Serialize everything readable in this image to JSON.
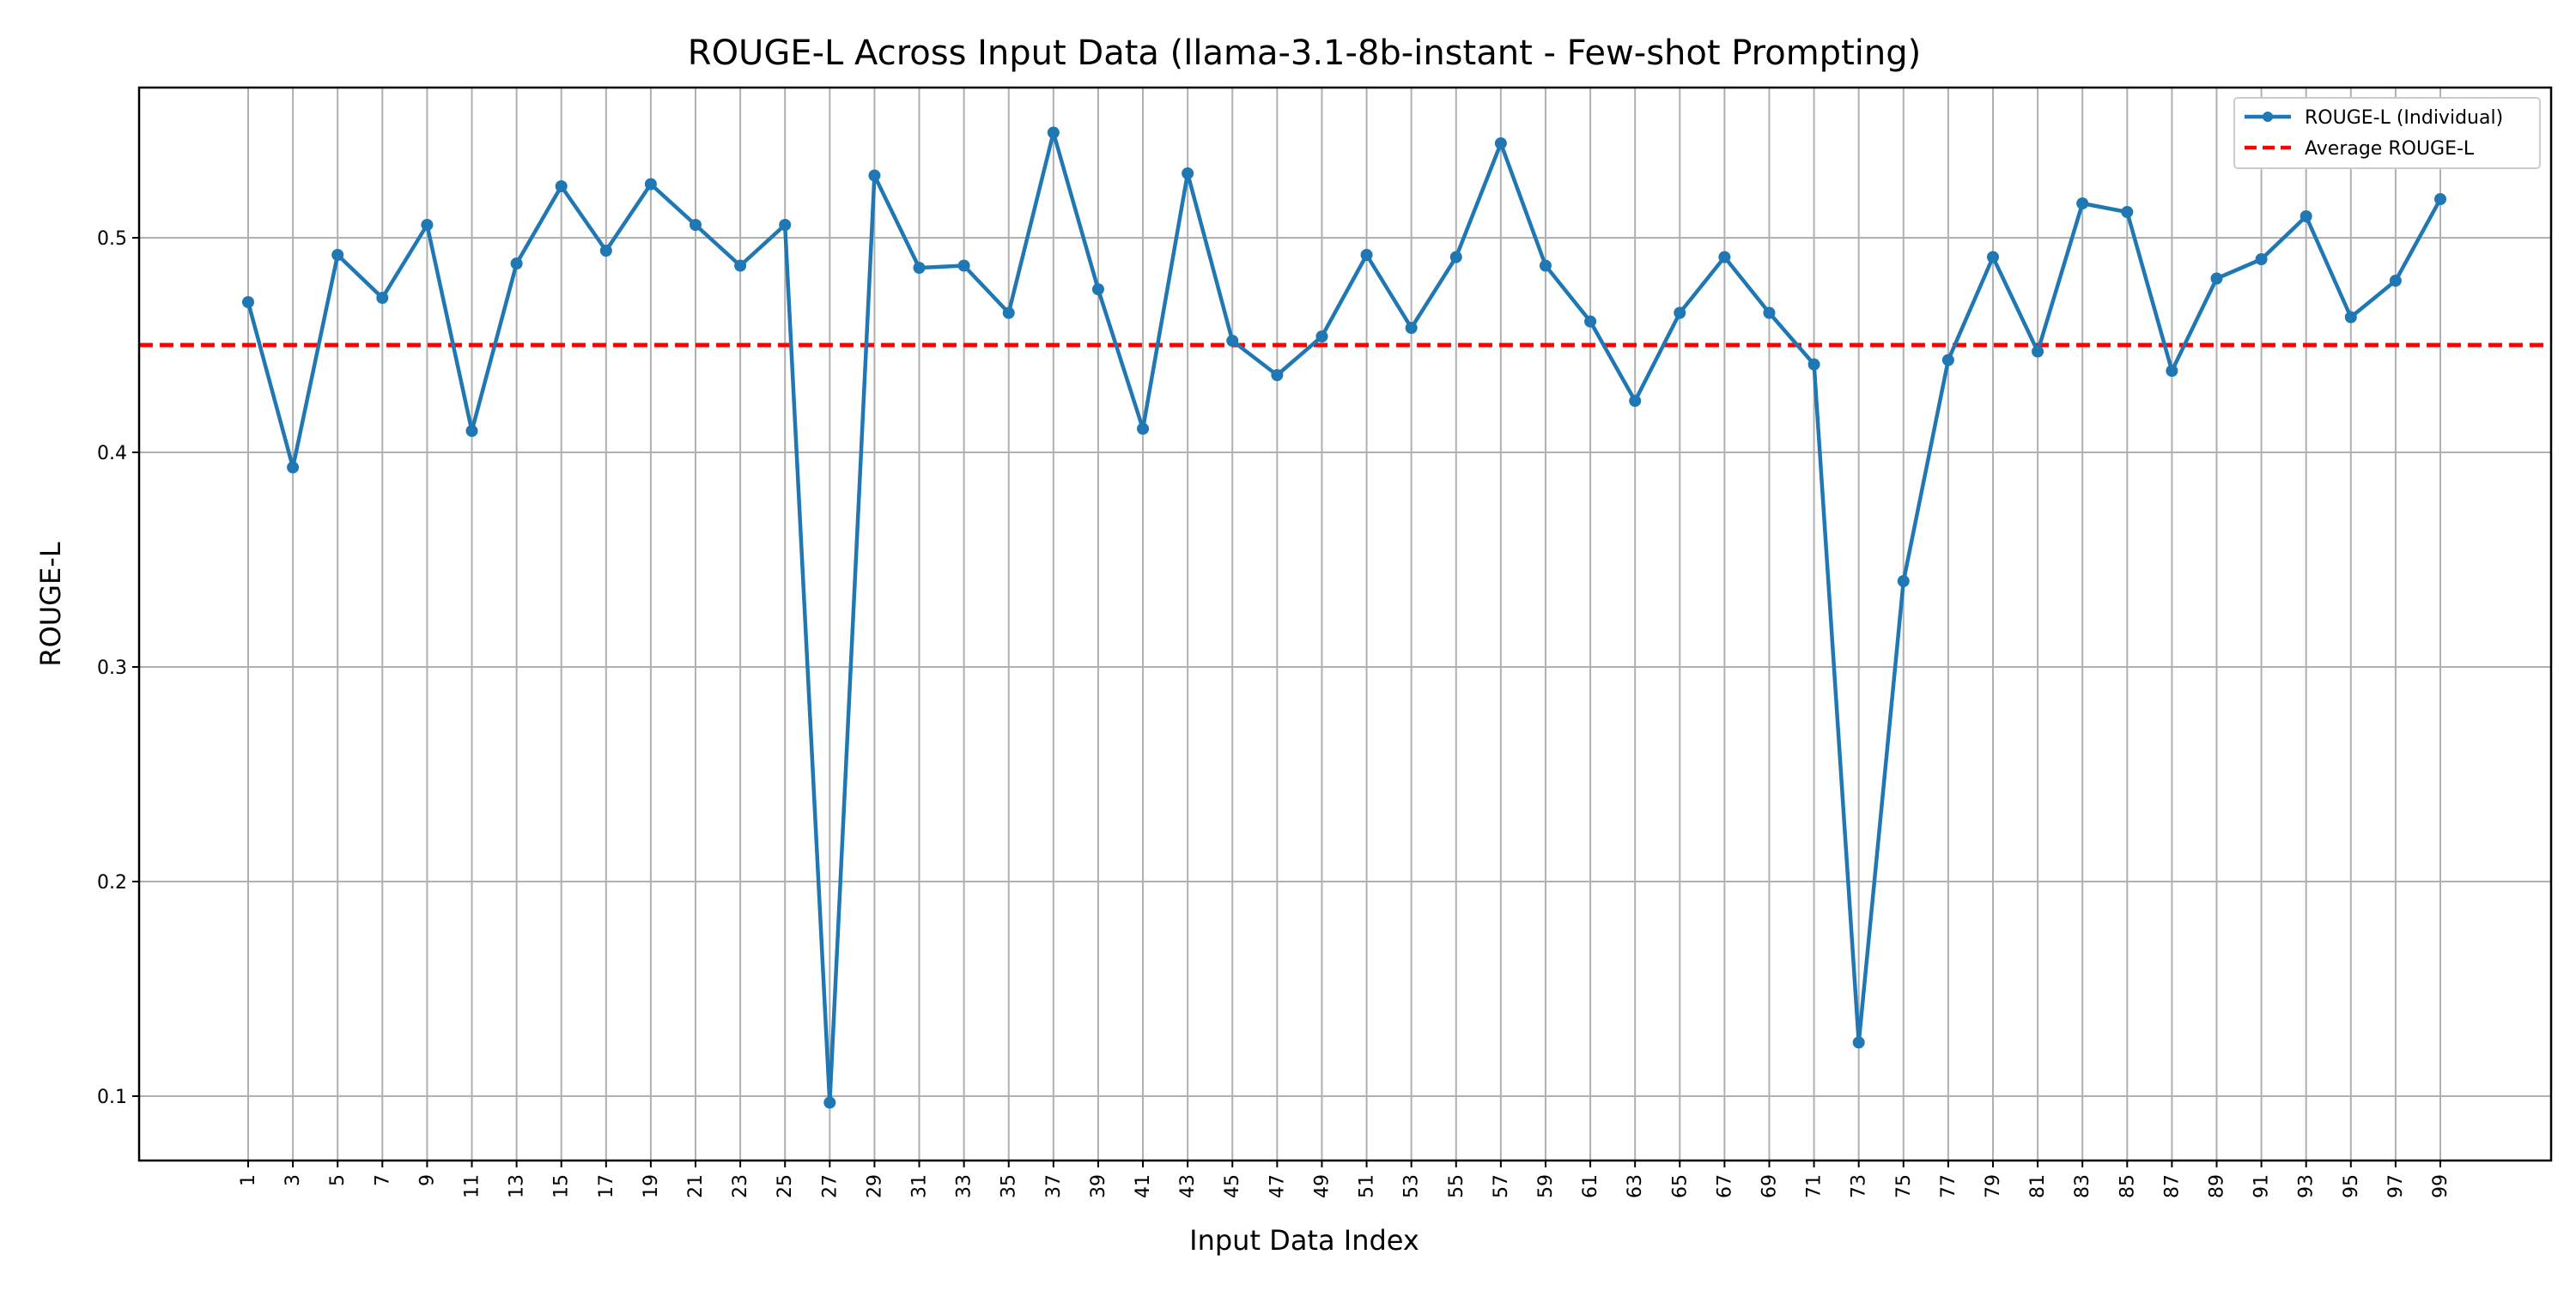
{
  "chart_data": {
    "type": "line",
    "title": "ROUGE-L Across Input Data (llama-3.1-8b-instant - Few-shot Prompting)",
    "xlabel": "Input Data Index",
    "ylabel": "ROUGE-L",
    "ylim": [
      0.07,
      0.57
    ],
    "yticks": [
      0.1,
      0.2,
      0.3,
      0.4,
      0.5
    ],
    "x": [
      1,
      3,
      5,
      7,
      9,
      11,
      13,
      15,
      17,
      19,
      21,
      23,
      25,
      27,
      29,
      31,
      33,
      35,
      37,
      39,
      41,
      43,
      45,
      47,
      49,
      51,
      53,
      55,
      57,
      59,
      61,
      63,
      65,
      67,
      69,
      71,
      73,
      75,
      77,
      79,
      81,
      83,
      85,
      87,
      89,
      91,
      93,
      95,
      97,
      99
    ],
    "series": [
      {
        "name": "ROUGE-L (Individual)",
        "color": "#1f77b4",
        "values": [
          0.47,
          0.393,
          0.492,
          0.472,
          0.506,
          0.41,
          0.488,
          0.524,
          0.494,
          0.525,
          0.506,
          0.487,
          0.506,
          0.097,
          0.529,
          0.486,
          0.487,
          0.465,
          0.549,
          0.476,
          0.411,
          0.53,
          0.452,
          0.436,
          0.454,
          0.492,
          0.458,
          0.491,
          0.544,
          0.487,
          0.461,
          0.424,
          0.465,
          0.491,
          0.465,
          0.441,
          0.125,
          0.34,
          0.443,
          0.491,
          0.447,
          0.516,
          0.512,
          0.438,
          0.481,
          0.49,
          0.51,
          0.463,
          0.48,
          0.518
        ]
      },
      {
        "name": "Average ROUGE-L",
        "color": "#ff0000",
        "style": "dashed",
        "value": 0.45
      }
    ],
    "grid": true,
    "legend_position": "top-right"
  }
}
